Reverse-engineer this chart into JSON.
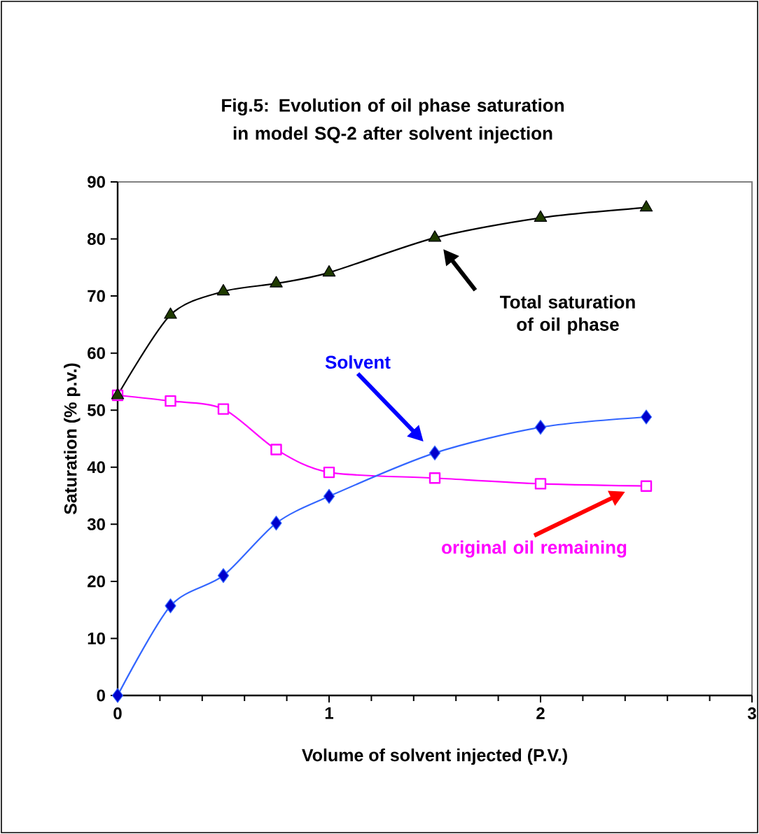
{
  "chart_data": {
    "type": "line",
    "title": "Fig.5: Evolution of oil phase saturation in model SQ-2 after solvent injection",
    "xlabel": "Volume of solvent injected (P.V.)",
    "ylabel": "Saturation (% p.v.)",
    "xlim": [
      0,
      3
    ],
    "xticks": [
      0,
      1,
      2,
      3
    ],
    "ylim": [
      0,
      90
    ],
    "yticks": [
      0,
      10,
      20,
      30,
      40,
      50,
      60,
      70,
      80,
      90
    ],
    "grid": false,
    "series": [
      {
        "name": "Total saturation of oil phase",
        "color": "#1f3a00",
        "marker": "triangle",
        "x": [
          0,
          0.25,
          0.5,
          0.75,
          1,
          1.5,
          2,
          2.5
        ],
        "values": [
          52.6,
          66.7,
          70.8,
          72.2,
          74.1,
          80.2,
          83.7,
          85.5
        ]
      },
      {
        "name": "Solvent",
        "color": "#0000cc",
        "marker": "diamond",
        "x": [
          0,
          0.25,
          0.5,
          0.75,
          1,
          1.5,
          2,
          2.5
        ],
        "values": [
          0,
          15.7,
          21.0,
          30.2,
          34.9,
          42.5,
          47.0,
          48.8
        ]
      },
      {
        "name": "original oil remaining",
        "color": "#ff00ff",
        "marker": "square",
        "x": [
          0,
          0.25,
          0.5,
          0.75,
          1,
          1.5,
          2,
          2.5
        ],
        "values": [
          52.6,
          51.6,
          50.2,
          43.1,
          39.1,
          38.1,
          37.1,
          36.7
        ]
      }
    ]
  }
}
